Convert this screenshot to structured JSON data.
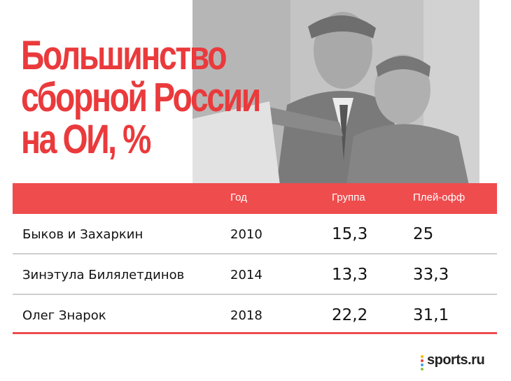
{
  "headline": {
    "line1": "Большинство",
    "line2": "сборной России",
    "line3": "на ОИ, %"
  },
  "table": {
    "columns": [
      "Год",
      "Группа",
      "Плей-офф"
    ],
    "rows": [
      {
        "name": "Быков и Захаркин",
        "year": "2010",
        "group": "15,3",
        "playoff": "25"
      },
      {
        "name": "Зинэтула Билялетдинов",
        "year": "2014",
        "group": "13,3",
        "playoff": "33,3"
      },
      {
        "name": "Олег Знарок",
        "year": "2018",
        "group": "22,2",
        "playoff": "31,1"
      }
    ]
  },
  "brand": {
    "logo_text": "sports.ru",
    "accent_color": "#ef4c4e",
    "dot_colors": [
      "#f5b800",
      "#e8443a",
      "#3aa0e8",
      "#8ac43f"
    ]
  },
  "photo": {
    "icon": "coaches-photo-icon"
  }
}
